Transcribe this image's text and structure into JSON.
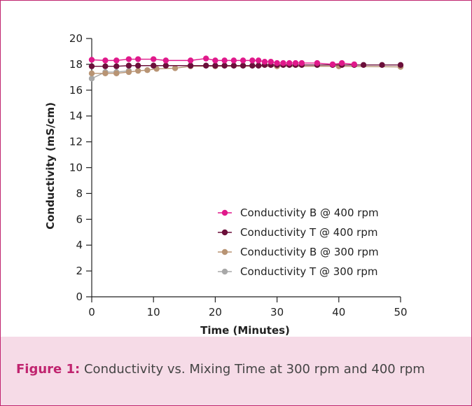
{
  "caption": {
    "label": "Figure 1:",
    "text": "Conductivity vs. Mixing Time at 300 rpm and 400 rpm"
  },
  "colors": {
    "frame": "#c0246f",
    "caption_bg": "#f6dbe7"
  },
  "chart_data": {
    "type": "line",
    "title": "",
    "xlabel": "Time (Minutes)",
    "ylabel": "Conductivity (mS/cm)",
    "xlim": [
      0,
      50
    ],
    "ylim": [
      0,
      20
    ],
    "xticks": [
      0,
      10,
      20,
      30,
      40,
      50
    ],
    "yticks": [
      0,
      2,
      4,
      6,
      8,
      10,
      12,
      14,
      16,
      18,
      20
    ],
    "grid": false,
    "legend": "center-right",
    "series": [
      {
        "name": "Conductivity B @ 400 rpm",
        "color": "#e0198b",
        "x": [
          0,
          2.2,
          4,
          6,
          7.5,
          10,
          12,
          16,
          18.5,
          20,
          21.5,
          23,
          24.5,
          26,
          27,
          28,
          29,
          30,
          31,
          32,
          33,
          34,
          36.5,
          39,
          40.5,
          42.5
        ],
        "y": [
          18.35,
          18.3,
          18.3,
          18.4,
          18.4,
          18.4,
          18.3,
          18.3,
          18.45,
          18.3,
          18.3,
          18.3,
          18.3,
          18.3,
          18.3,
          18.2,
          18.2,
          18.1,
          18.1,
          18.1,
          18.1,
          18.1,
          18.1,
          18.0,
          18.1,
          18.0
        ]
      },
      {
        "name": "Conductivity T @ 400 rpm",
        "color": "#6b0f3a",
        "x": [
          0,
          2.2,
          4,
          6,
          7.5,
          10,
          12,
          16,
          18.5,
          20,
          21.5,
          23,
          24.5,
          26,
          27,
          28,
          29,
          30,
          31,
          32,
          33,
          34,
          36.5,
          39,
          40.5,
          42.5,
          44,
          47,
          50
        ],
        "y": [
          17.85,
          17.85,
          17.85,
          17.9,
          17.9,
          17.9,
          17.9,
          17.9,
          17.9,
          17.9,
          17.9,
          17.9,
          17.9,
          17.9,
          17.9,
          17.95,
          17.95,
          17.95,
          17.95,
          17.95,
          17.95,
          17.95,
          17.95,
          17.95,
          17.95,
          17.95,
          17.95,
          17.95,
          17.95
        ]
      },
      {
        "name": "Conductivity B @ 300 rpm",
        "color": "#b89474",
        "x": [
          0,
          2.2,
          4,
          6,
          7.5,
          9,
          10.5,
          13.5,
          16,
          20,
          30,
          40,
          50
        ],
        "y": [
          17.3,
          17.3,
          17.3,
          17.4,
          17.5,
          17.55,
          17.65,
          17.7,
          17.85,
          17.85,
          17.85,
          17.85,
          17.8
        ]
      },
      {
        "name": "Conductivity T @ 300 rpm",
        "color": "#a8a8a8",
        "x": [
          0,
          2.2,
          4,
          6
        ],
        "y": [
          16.9,
          17.4,
          17.4,
          17.5
        ]
      }
    ]
  }
}
